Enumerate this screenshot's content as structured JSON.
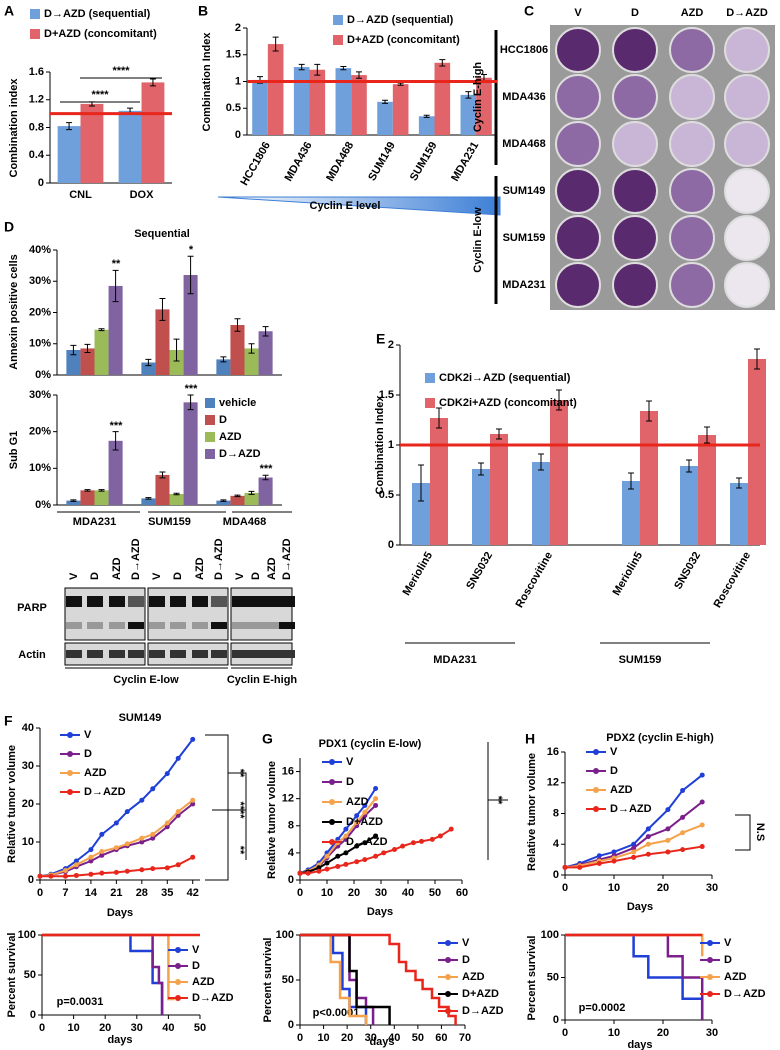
{
  "chart_data": [
    {
      "type": "bar",
      "panel": "A",
      "ylabel": "Combination index",
      "categories": [
        "CNL",
        "DOX"
      ],
      "series": [
        {
          "name": "D→AZD (sequential)",
          "color": "#6fa0dc",
          "values": [
            0.82,
            1.04
          ],
          "errors": [
            0.05,
            0.04
          ]
        },
        {
          "name": "D+AZD (concomitant)",
          "color": "#e0646a",
          "values": [
            1.14,
            1.45
          ],
          "errors": [
            0.03,
            0.05
          ]
        }
      ],
      "ylim": [
        0,
        1.6
      ],
      "yticks": [
        0,
        0.4,
        0.8,
        1.2,
        1.6
      ],
      "hline": 1,
      "hline_color": "#e8261c",
      "annotations": [
        "****",
        "****"
      ]
    },
    {
      "type": "bar",
      "panel": "B",
      "ylabel": "Combination Index",
      "categories": [
        "HCC1806",
        "MDA436",
        "MDA468",
        "SUM149",
        "SUM159",
        "MDA231"
      ],
      "series": [
        {
          "name": "D→AZD (sequential)",
          "color": "#6fa0dc",
          "values": [
            1.03,
            1.27,
            1.25,
            0.62,
            0.35,
            0.75
          ],
          "errors": [
            0.06,
            0.05,
            0.03,
            0.03,
            0.02,
            0.06
          ]
        },
        {
          "name": "D+AZD (concomitant)",
          "color": "#e0646a",
          "values": [
            1.7,
            1.22,
            1.12,
            0.95,
            1.35,
            1.07
          ],
          "errors": [
            0.13,
            0.1,
            0.06,
            0.02,
            0.06,
            0.06
          ]
        }
      ],
      "ylim": [
        0,
        2
      ],
      "yticks": [
        0,
        0.5,
        1,
        1.5,
        2
      ],
      "hline": 1,
      "hline_color": "#e8261c",
      "annotations": [
        "Cyclin E level"
      ]
    },
    {
      "type": "bar",
      "panel": "D",
      "title": "Sequential",
      "ylabel": "Annexin positive cells",
      "series": [
        {
          "color": "#4f81bd",
          "values": [
            8,
            4,
            5
          ],
          "errors": [
            1.5,
            1,
            0.8
          ]
        },
        {
          "color": "#c0504d",
          "values": [
            8.5,
            21,
            16
          ],
          "errors": [
            1.3,
            3.5,
            2
          ]
        },
        {
          "color": "#9bbb59",
          "values": [
            14.5,
            8,
            8.5
          ],
          "errors": [
            0.3,
            3.5,
            1.5
          ]
        },
        {
          "color": "#8064a2",
          "values": [
            28.5,
            32,
            14
          ],
          "errors": [
            5,
            6,
            1.5
          ]
        }
      ],
      "ylim": [
        0,
        40
      ],
      "yticks": [
        {
          "value": 0,
          "label": "0%"
        },
        {
          "value": 10,
          "label": "10%"
        },
        {
          "value": 20,
          "label": "20%"
        },
        {
          "value": 30,
          "label": "30%"
        },
        {
          "value": 40,
          "label": "40%"
        }
      ],
      "annotations": [
        "**",
        "*"
      ]
    },
    {
      "type": "bar",
      "ylabel": "Sub G1",
      "categories": [
        "MDA231",
        "SUM159",
        "MDA468"
      ],
      "series": [
        {
          "name": "vehicle",
          "color": "#4f81bd",
          "values": [
            1.2,
            1.8,
            1.2
          ],
          "errors": [
            0.2,
            0.2,
            0.2
          ]
        },
        {
          "name": "D",
          "color": "#c0504d",
          "values": [
            4,
            8.2,
            2.5
          ],
          "errors": [
            0.2,
            0.8,
            0.2
          ]
        },
        {
          "name": "AZD",
          "color": "#9bbb59",
          "values": [
            4,
            3,
            3.3
          ],
          "errors": [
            0.2,
            0.2,
            0.4
          ]
        },
        {
          "name": "D→AZD",
          "color": "#8064a2",
          "values": [
            17.5,
            28,
            7.5
          ],
          "errors": [
            2.5,
            2,
            0.6
          ]
        }
      ],
      "ylim": [
        0,
        30
      ],
      "yticks": [
        {
          "value": 0,
          "label": "0%"
        },
        {
          "value": 10,
          "label": "10%"
        },
        {
          "value": 20,
          "label": "20%"
        },
        {
          "value": 30,
          "label": "30%"
        }
      ],
      "annotations": [
        "***",
        "***",
        "***"
      ]
    },
    {
      "type": "bar",
      "panel": "E",
      "ylabel": "Combination Index",
      "categories": [
        "Meriolin5",
        "SNS032",
        "Roscovitine",
        "Meriolin5",
        "SNS032",
        "Roscovitine"
      ],
      "groups": [
        "MDA231",
        "SUM159"
      ],
      "series": [
        {
          "name": "CDK2i→AZD (sequential)",
          "color": "#6fa0dc",
          "values": [
            0.62,
            0.76,
            0.83,
            0.64,
            0.79,
            0.62
          ],
          "errors": [
            0.18,
            0.06,
            0.08,
            0.08,
            0.06,
            0.05
          ]
        },
        {
          "name": "CDK2i+AZD (concomitant)",
          "color": "#e0646a",
          "values": [
            1.27,
            1.11,
            1.45,
            1.34,
            1.1,
            1.86
          ],
          "errors": [
            0.1,
            0.05,
            0.1,
            0.1,
            0.08,
            0.1
          ]
        }
      ],
      "ylim": [
        0,
        2
      ],
      "yticks": [
        0,
        0.5,
        1,
        1.5,
        2
      ],
      "hline": 1,
      "hline_color": "#e8261c"
    },
    {
      "type": "line",
      "panel": "F",
      "title": "SUM149",
      "xlabel": "Days",
      "ylabel": "Relative tumor volume",
      "series": [
        {
          "name": "V",
          "color": "#1f3fd6",
          "x": [
            0,
            3,
            7,
            10,
            14,
            17,
            21,
            24,
            28,
            31,
            35,
            38,
            42
          ],
          "values": [
            1,
            1.5,
            3,
            5,
            8,
            12,
            15,
            18,
            21,
            24,
            28,
            32,
            37
          ]
        },
        {
          "name": "D",
          "color": "#7b1f8c",
          "x": [
            0,
            3,
            7,
            10,
            14,
            17,
            21,
            24,
            28,
            31,
            35,
            38,
            42
          ],
          "values": [
            1,
            1.3,
            2.2,
            3.5,
            5,
            6.5,
            8,
            9,
            10,
            11,
            14,
            17,
            20
          ]
        },
        {
          "name": "AZD",
          "color": "#f4a24b",
          "x": [
            0,
            3,
            7,
            10,
            14,
            17,
            21,
            24,
            28,
            31,
            35,
            38,
            42
          ],
          "values": [
            1,
            1.3,
            2.5,
            4,
            6,
            7.5,
            8.5,
            9.5,
            11,
            12,
            15,
            18,
            21
          ]
        },
        {
          "name": "D→AZD",
          "color": "#e8261c",
          "x": [
            0,
            3,
            7,
            10,
            14,
            17,
            21,
            24,
            28,
            31,
            35,
            38,
            42
          ],
          "values": [
            1,
            1,
            1,
            1.2,
            1.5,
            1.8,
            2,
            2.3,
            2.7,
            3,
            3.2,
            4,
            6
          ]
        }
      ],
      "xlim": [
        0,
        44
      ],
      "xticks": [
        0,
        7,
        14,
        21,
        28,
        35,
        42
      ],
      "ylim": [
        0,
        40
      ],
      "yticks": [
        0,
        10,
        20,
        30,
        40
      ],
      "annotations": [
        "**",
        "****",
        "**"
      ]
    },
    {
      "type": "step",
      "xlabel": "days",
      "ylabel": "Percent survival",
      "series": [
        {
          "name": "V",
          "color": "#1f3fd6",
          "x": [
            0,
            28,
            35,
            38
          ],
          "values": [
            100,
            80,
            40,
            0
          ]
        },
        {
          "name": "D",
          "color": "#7b1f8c",
          "x": [
            0,
            35,
            37,
            38
          ],
          "values": [
            100,
            60,
            40,
            0
          ]
        },
        {
          "name": "AZD",
          "color": "#f4a24b",
          "x": [
            0,
            40,
            42
          ],
          "values": [
            100,
            20,
            20
          ]
        },
        {
          "name": "D→AZD",
          "color": "#e8261c",
          "x": [
            0,
            50
          ],
          "values": [
            100,
            100
          ]
        }
      ],
      "xlim": [
        0,
        50
      ],
      "xticks": [
        0,
        10,
        20,
        30,
        40,
        50
      ],
      "ylim": [
        0,
        100
      ],
      "yticks": [
        0,
        50,
        100
      ],
      "annotations": [
        "p=0.0031"
      ]
    },
    {
      "type": "line",
      "panel": "G",
      "title": "PDX1 (cyclin E-low)",
      "xlabel": "Days",
      "ylabel": "Relative tumor volume",
      "series": [
        {
          "name": "V",
          "color": "#1f3fd6",
          "x": [
            0,
            3,
            7,
            10,
            14,
            17,
            21,
            24,
            28
          ],
          "values": [
            1,
            1.5,
            2.5,
            4,
            6,
            7.5,
            9.5,
            11,
            13.5
          ]
        },
        {
          "name": "D",
          "color": "#7b1f8c",
          "x": [
            0,
            3,
            7,
            10,
            14,
            17,
            21,
            24,
            28
          ],
          "values": [
            1,
            1.3,
            2,
            3.3,
            5,
            6,
            8,
            9.5,
            11
          ]
        },
        {
          "name": "AZD",
          "color": "#f4a24b",
          "x": [
            0,
            3,
            7,
            10,
            14,
            17,
            21,
            24,
            28
          ],
          "values": [
            1,
            1.3,
            2.2,
            3.5,
            5.5,
            6.5,
            8.5,
            10,
            12
          ]
        },
        {
          "name": "D+AZD",
          "color": "#000000",
          "x": [
            0,
            3,
            7,
            10,
            14,
            17,
            21,
            24,
            28
          ],
          "values": [
            1,
            1.2,
            1.8,
            2.5,
            3.5,
            4,
            5,
            5.5,
            6.5
          ]
        },
        {
          "name": "D→AZD",
          "color": "#e8261c",
          "x": [
            0,
            3,
            7,
            10,
            14,
            17,
            21,
            24,
            28,
            31,
            35,
            38,
            42,
            45,
            49,
            52,
            56
          ],
          "values": [
            1,
            1,
            1.3,
            1.6,
            2,
            2.3,
            2.7,
            3,
            3.5,
            4,
            4.5,
            5,
            5.5,
            5.7,
            6,
            6.5,
            7.5
          ]
        }
      ],
      "xlim": [
        0,
        60
      ],
      "xticks": [
        0,
        10,
        20,
        30,
        40,
        50,
        60
      ],
      "ylim": [
        0,
        18
      ],
      "yticks": [
        0,
        4,
        8,
        12,
        16
      ],
      "annotations": [
        "**"
      ]
    },
    {
      "type": "step",
      "xlabel": "days",
      "ylabel": "Percent survival",
      "series": [
        {
          "name": "V",
          "color": "#1f3fd6",
          "x": [
            0,
            14,
            18,
            21,
            24,
            28
          ],
          "values": [
            100,
            80,
            40,
            20,
            20,
            0
          ]
        },
        {
          "name": "D",
          "color": "#7b1f8c",
          "x": [
            0,
            21,
            24,
            28,
            31
          ],
          "values": [
            100,
            50,
            30,
            20,
            0
          ]
        },
        {
          "name": "AZD",
          "color": "#f4a24b",
          "x": [
            0,
            13,
            17,
            21,
            28
          ],
          "values": [
            100,
            70,
            30,
            10,
            0
          ]
        },
        {
          "name": "D+AZD",
          "color": "#000000",
          "x": [
            0,
            21,
            24,
            28,
            38
          ],
          "values": [
            100,
            60,
            20,
            20,
            0
          ]
        },
        {
          "name": "D→AZD",
          "color": "#e8261c",
          "x": [
            0,
            38,
            42,
            45,
            49,
            52,
            56,
            59,
            63,
            66
          ],
          "values": [
            100,
            90,
            70,
            60,
            50,
            40,
            30,
            20,
            10,
            0
          ]
        }
      ],
      "xlim": [
        0,
        70
      ],
      "xticks": [
        0,
        10,
        20,
        30,
        40,
        50,
        60,
        70
      ],
      "ylim": [
        0,
        100
      ],
      "yticks": [
        0,
        50,
        100
      ],
      "annotations": [
        "p<0.0001"
      ]
    },
    {
      "type": "line",
      "panel": "H",
      "title": "PDX2 (cyclin E-high)",
      "xlabel": "Days",
      "ylabel": "Relative tumor volume",
      "series": [
        {
          "name": "V",
          "color": "#1f3fd6",
          "x": [
            0,
            3,
            7,
            10,
            14,
            17,
            21,
            24,
            28
          ],
          "values": [
            1,
            1.5,
            2.5,
            3,
            4,
            6,
            8.5,
            11,
            13
          ]
        },
        {
          "name": "D",
          "color": "#7b1f8c",
          "x": [
            0,
            3,
            7,
            10,
            14,
            17,
            21,
            24,
            28
          ],
          "values": [
            1,
            1.3,
            2,
            2.5,
            3.5,
            5,
            6,
            7.5,
            9.5
          ]
        },
        {
          "name": "AZD",
          "color": "#f4a24b",
          "x": [
            0,
            3,
            7,
            10,
            14,
            17,
            21,
            24,
            28
          ],
          "values": [
            1,
            1.2,
            1.8,
            2.2,
            3,
            4,
            4.5,
            5.5,
            6.5
          ]
        },
        {
          "name": "D→AZD",
          "color": "#e8261c",
          "x": [
            0,
            3,
            7,
            10,
            14,
            17,
            21,
            24,
            28
          ],
          "values": [
            1,
            1,
            1.5,
            1.8,
            2.3,
            2.7,
            3,
            3.3,
            3.7
          ]
        }
      ],
      "xlim": [
        0,
        30
      ],
      "xticks": [
        0,
        10,
        20,
        30
      ],
      "ylim": [
        0,
        16
      ],
      "yticks": [
        0,
        4,
        8,
        12,
        16
      ],
      "annotations": [
        "N.S"
      ]
    },
    {
      "type": "step",
      "xlabel": "days",
      "ylabel": "Percent survival",
      "series": [
        {
          "name": "V",
          "color": "#1f3fd6",
          "x": [
            0,
            14,
            17,
            24,
            28
          ],
          "values": [
            100,
            75,
            50,
            25,
            0
          ]
        },
        {
          "name": "D",
          "color": "#7b1f8c",
          "x": [
            0,
            21,
            24,
            28
          ],
          "values": [
            100,
            75,
            50,
            0
          ]
        },
        {
          "name": "AZD",
          "color": "#f4a24b",
          "x": [
            0,
            28
          ],
          "values": [
            100,
            75
          ]
        },
        {
          "name": "D→AZD",
          "color": "#e8261c",
          "x": [
            0,
            28
          ],
          "values": [
            100,
            100
          ]
        }
      ],
      "xlim": [
        0,
        30
      ],
      "xticks": [
        0,
        10,
        20,
        30
      ],
      "ylim": [
        0,
        100
      ],
      "yticks": [
        0,
        50,
        100
      ],
      "annotations": [
        "p=0.0002"
      ]
    }
  ],
  "plates": {
    "panel": "C",
    "columns": [
      "V",
      "D",
      "AZD",
      "D→AZD"
    ],
    "rows": [
      "HCC1806",
      "MDA436",
      "MDA468",
      "SUM149",
      "SUM159",
      "MDA231"
    ],
    "groups": [
      "Cyclin E-high",
      "Cyclin E-low"
    ]
  },
  "blot": {
    "lanes": [
      "V",
      "D",
      "AZD",
      "D→AZD"
    ],
    "bands": [
      "PARP",
      "Actin"
    ],
    "groups": [
      "Cyclin E-low",
      "Cyclin E-high"
    ]
  }
}
